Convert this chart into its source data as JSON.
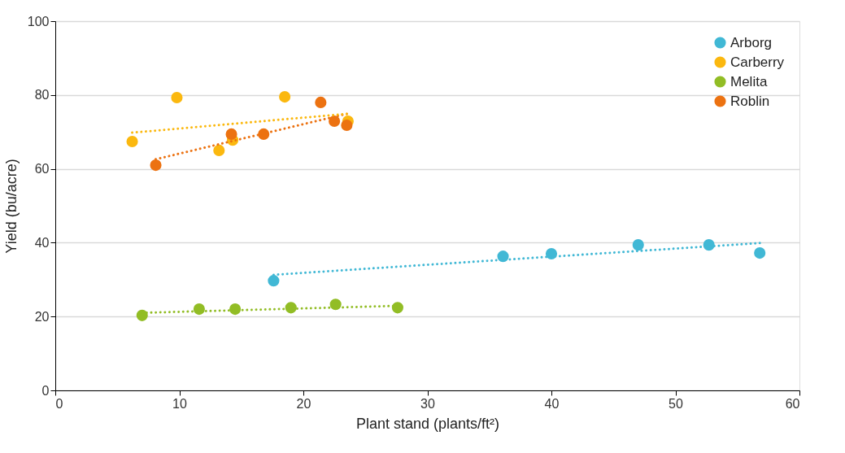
{
  "chart_data": {
    "type": "scatter",
    "xlabel": "Plant stand (plants/ft²)",
    "ylabel": "Yield (bu/acre)",
    "xlim": [
      0,
      60
    ],
    "xticks": [
      0,
      10,
      20,
      30,
      40,
      50,
      60
    ],
    "ylim": [
      0,
      100
    ],
    "yticks": [
      0,
      20,
      40,
      60,
      80,
      100
    ],
    "grid": "y",
    "legend": "top right",
    "series": [
      {
        "name": "Arborg",
        "color": "#41b8d5",
        "marker": "circle",
        "x": [
          17.6,
          36.1,
          40.0,
          47.0,
          52.7,
          56.8
        ],
        "values": [
          29.7,
          36.3,
          37.0,
          39.4,
          39.4,
          37.2
        ]
      },
      {
        "name": "Carberry",
        "color": "#fbb80f",
        "marker": "circle",
        "x": [
          6.2,
          9.8,
          13.2,
          14.3,
          18.5,
          23.6
        ],
        "values": [
          67.4,
          79.3,
          65.0,
          67.8,
          79.5,
          72.9
        ]
      },
      {
        "name": "Melita",
        "color": "#92bd25",
        "marker": "circle",
        "x": [
          7.0,
          11.6,
          14.5,
          19.0,
          22.6,
          27.6
        ],
        "values": [
          20.3,
          22.0,
          22.0,
          22.4,
          23.3,
          22.4
        ]
      },
      {
        "name": "Roblin",
        "color": "#ec7211",
        "marker": "circle",
        "x": [
          8.1,
          14.2,
          16.8,
          21.4,
          22.5,
          23.5
        ],
        "values": [
          61.0,
          69.4,
          69.4,
          78.0,
          72.9,
          71.8
        ]
      },
      {
        "type": "line",
        "line_style": "dotted",
        "color": "#41b8d5",
        "x": [
          17.6,
          56.8
        ],
        "values": [
          31.3,
          39.9
        ]
      },
      {
        "type": "line",
        "line_style": "dotted",
        "color": "#fbb80f",
        "x": [
          6.2,
          23.5
        ],
        "values": [
          69.8,
          74.9
        ]
      },
      {
        "type": "line",
        "line_style": "dotted",
        "color": "#92bd25",
        "x": [
          7.0,
          27.6
        ],
        "values": [
          21.0,
          22.9
        ]
      },
      {
        "type": "line",
        "line_style": "dotted",
        "color": "#ec7211",
        "x": [
          8.1,
          23.5
        ],
        "values": [
          62.6,
          74.9
        ]
      }
    ]
  }
}
